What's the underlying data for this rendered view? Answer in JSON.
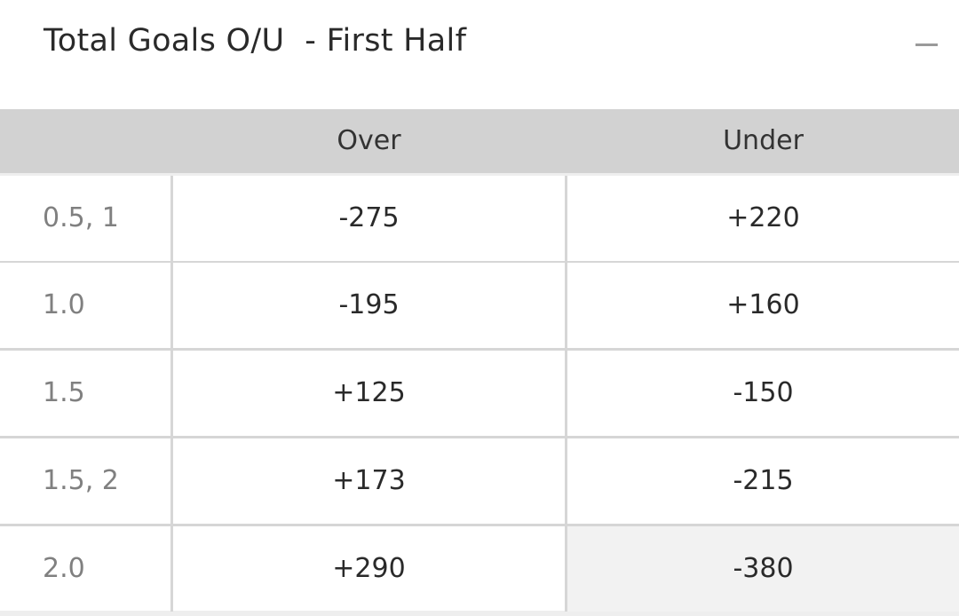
{
  "market": {
    "title": "Total Goals O/U  - First Half",
    "collapse_icon": "minus-icon"
  },
  "table": {
    "headers": [
      "",
      "Over",
      "Under"
    ],
    "rows": [
      {
        "line": "0.5, 1",
        "over": "-275",
        "under": "+220"
      },
      {
        "line": "1.0",
        "over": "-195",
        "under": "+160"
      },
      {
        "line": "1.5",
        "over": "+125",
        "under": "-150"
      },
      {
        "line": "1.5, 2",
        "over": "+173",
        "under": "-215"
      },
      {
        "line": "2.0",
        "over": "+290",
        "under": "-380"
      }
    ]
  },
  "colors": {
    "header_bg": "#d2d2d2",
    "selected_bg": "#f2f2f2",
    "divider": "#d6d6d6"
  }
}
